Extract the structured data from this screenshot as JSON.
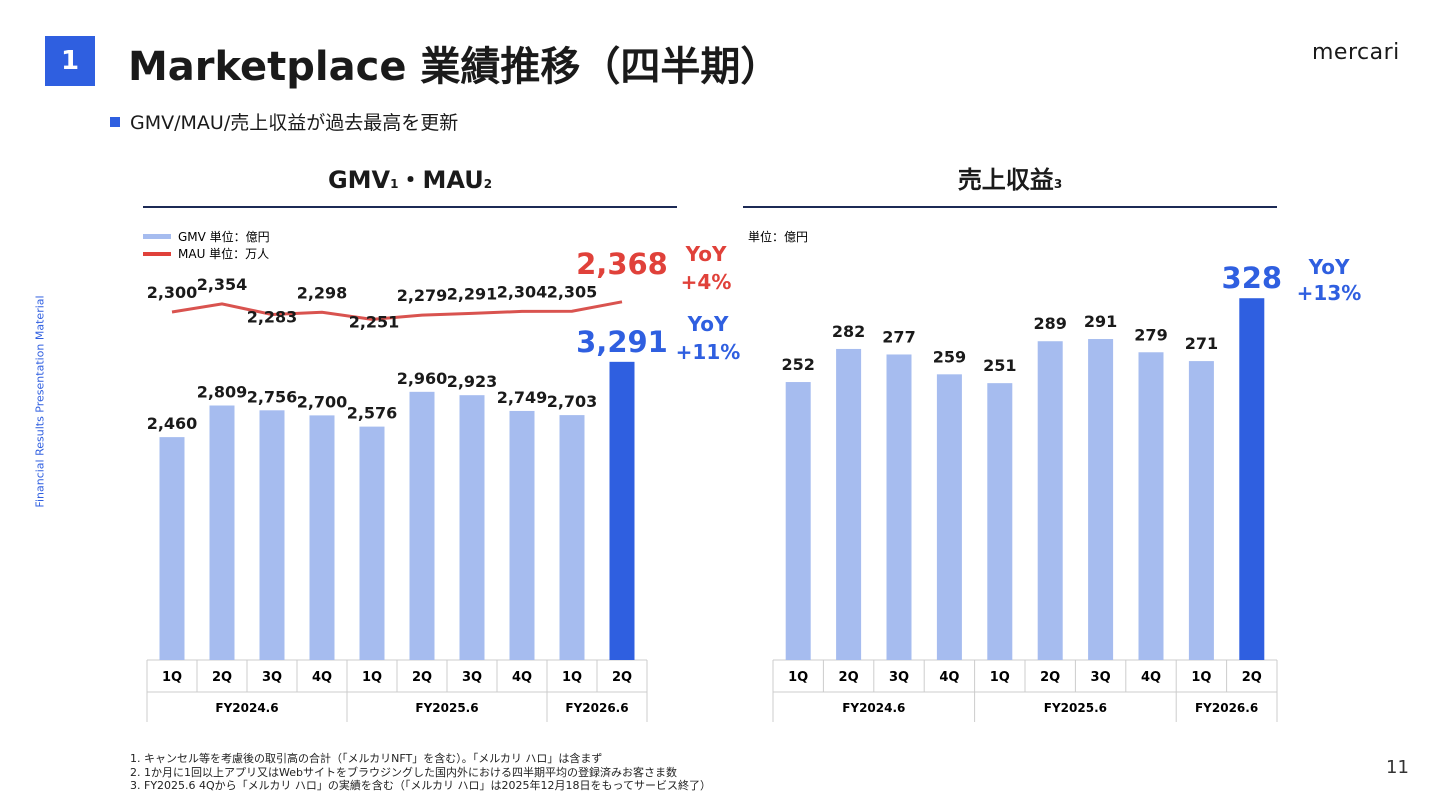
{
  "header": {
    "number": "1",
    "title": "Marketplace 業績推移（四半期）",
    "logo": "mercari",
    "subtitle": "GMV/MAU/売上収益が過去最高を更新",
    "side_label": "Financial Results Presentation Material"
  },
  "footnotes": [
    "1. キャンセル等を考慮後の取引高の合計（「メルカリNFT」を含む）。「メルカリ ハロ」は含まず",
    "2. 1か月に1回以上アプリ又はWebサイトをブラウジングした国内外における四半期平均の登録済みお客さま数",
    "3. FY2025.6 4Qから「メルカリ ハロ」の実績を含む（「メルカリ ハロ」は2025年12月18日をもってサービス終了）"
  ],
  "page_number": "11",
  "colors": {
    "bar": "#a6bcef",
    "highlight": "#2f5fe0",
    "mau": "#d9534f",
    "mau_text": "#e0413a",
    "accent": "#2f5fe0"
  },
  "chart_data": [
    {
      "type": "bar+line",
      "title": "GMV",
      "title_sup1": "1",
      "title_sep": "・",
      "title2": "MAU",
      "title_sup2": "2",
      "categories": [
        "1Q",
        "2Q",
        "3Q",
        "4Q",
        "1Q",
        "2Q",
        "3Q",
        "4Q",
        "1Q",
        "2Q"
      ],
      "groups": [
        {
          "label": "FY2024.6",
          "span": 4
        },
        {
          "label": "FY2025.6",
          "span": 4
        },
        {
          "label": "FY2026.6",
          "span": 2
        }
      ],
      "legend": [
        {
          "name": "GMV 単位：億円"
        },
        {
          "name": "MAU 単位：万人"
        }
      ],
      "series": [
        {
          "name": "GMV",
          "values": [
            2460,
            2809,
            2756,
            2700,
            2576,
            2960,
            2923,
            2749,
            2703,
            3291
          ],
          "labels": [
            "2,460",
            "2,809",
            "2,756",
            "2,700",
            "2,576",
            "2,960",
            "2,923",
            "2,749",
            "2,703",
            "3,291"
          ]
        },
        {
          "name": "MAU",
          "values": [
            2300,
            2354,
            2283,
            2298,
            2251,
            2279,
            2291,
            2304,
            2305,
            2368
          ],
          "labels": [
            "2,300",
            "2,354",
            "2,283",
            "2,298",
            "2,251",
            "2,279",
            "2,291",
            "2,304",
            "2,305",
            "2,368"
          ]
        }
      ],
      "annotations": {
        "gmv_yoy": [
          "YoY",
          "+11%"
        ],
        "mau_yoy": [
          "YoY",
          "+4%"
        ]
      }
    },
    {
      "type": "bar",
      "title": "売上収益",
      "title_sup": "3",
      "unit": "単位：億円",
      "categories": [
        "1Q",
        "2Q",
        "3Q",
        "4Q",
        "1Q",
        "2Q",
        "3Q",
        "4Q",
        "1Q",
        "2Q"
      ],
      "groups": [
        {
          "label": "FY2024.6",
          "span": 4
        },
        {
          "label": "FY2025.6",
          "span": 4
        },
        {
          "label": "FY2026.6",
          "span": 2
        }
      ],
      "values": [
        252,
        282,
        277,
        259,
        251,
        289,
        291,
        279,
        271,
        328
      ],
      "annotations": {
        "yoy": [
          "YoY",
          "+13%"
        ]
      }
    }
  ]
}
